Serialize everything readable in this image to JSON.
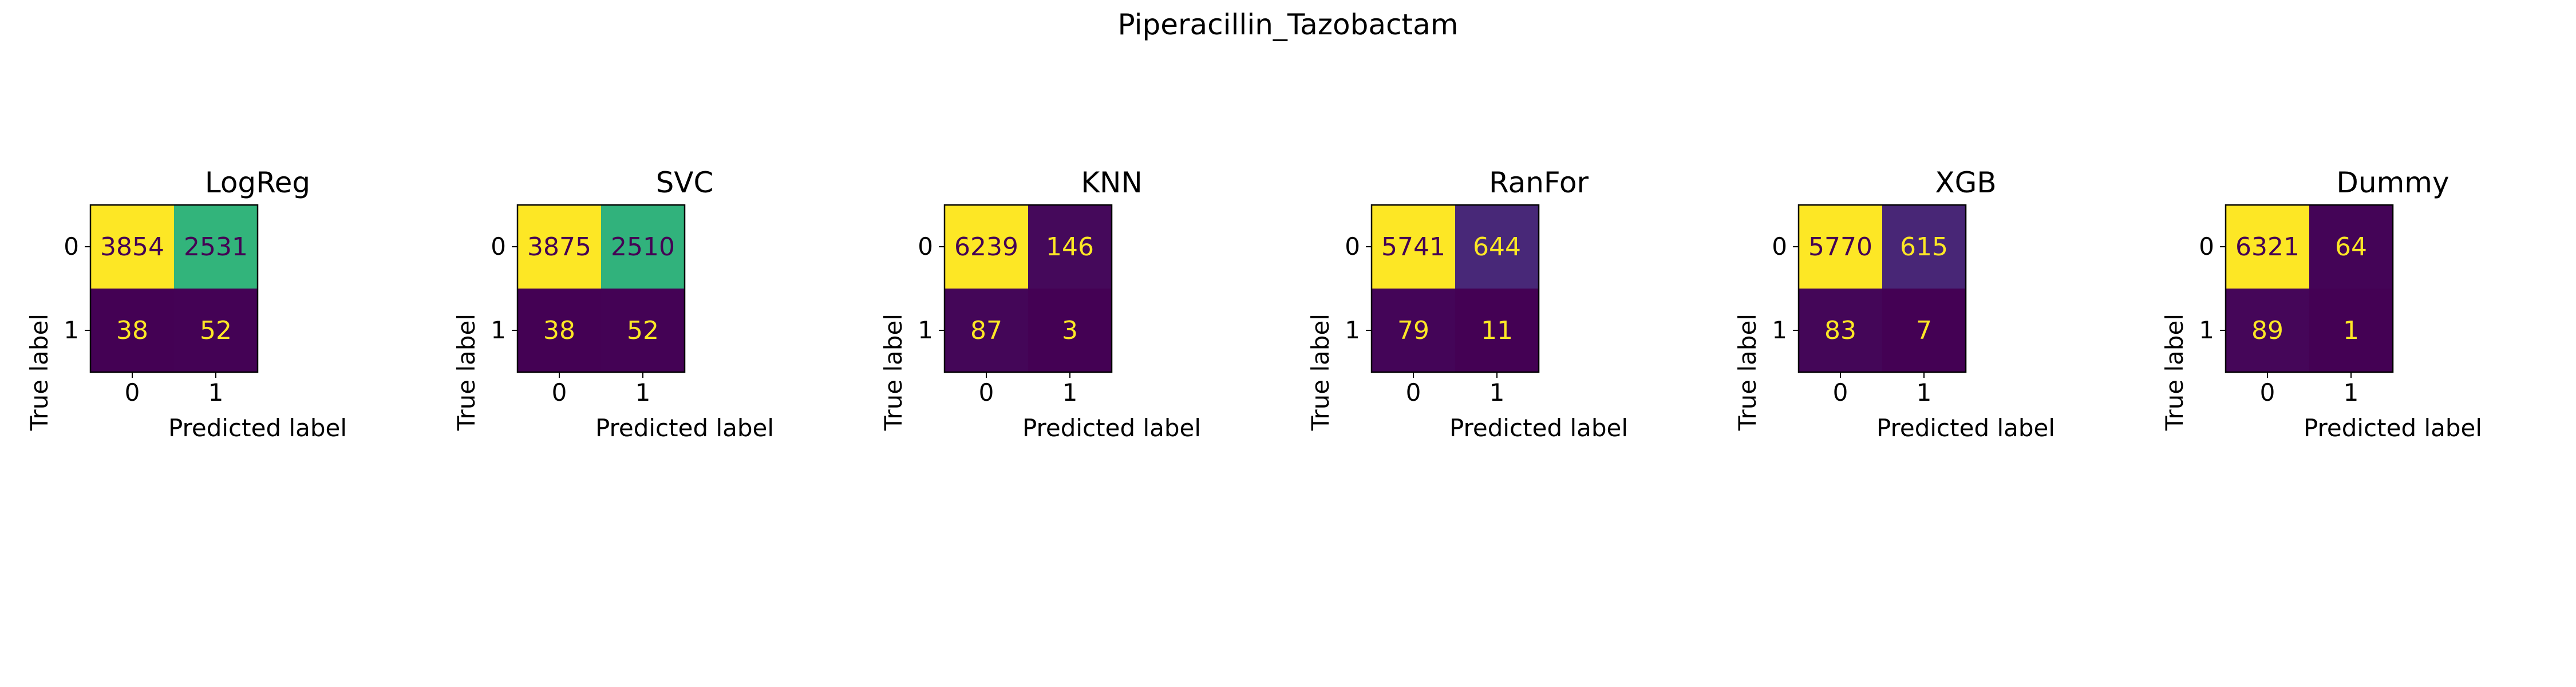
{
  "figure": {
    "title": "Piperacillin_Tazobactam"
  },
  "chart_data": [
    {
      "type": "heatmap",
      "title": "LogReg",
      "xlabel": "Predicted label",
      "ylabel": "True label",
      "x_ticks": [
        "0",
        "1"
      ],
      "y_ticks": [
        "0",
        "1"
      ],
      "matrix": [
        [
          3854,
          2531
        ],
        [
          38,
          52
        ]
      ],
      "colormap": "viridis",
      "grid": false
    },
    {
      "type": "heatmap",
      "title": "SVC",
      "xlabel": "Predicted label",
      "ylabel": "True label",
      "x_ticks": [
        "0",
        "1"
      ],
      "y_ticks": [
        "0",
        "1"
      ],
      "matrix": [
        [
          3875,
          2510
        ],
        [
          38,
          52
        ]
      ],
      "colormap": "viridis",
      "grid": false
    },
    {
      "type": "heatmap",
      "title": "KNN",
      "xlabel": "Predicted label",
      "ylabel": "True label",
      "x_ticks": [
        "0",
        "1"
      ],
      "y_ticks": [
        "0",
        "1"
      ],
      "matrix": [
        [
          6239,
          146
        ],
        [
          87,
          3
        ]
      ],
      "colormap": "viridis",
      "grid": false
    },
    {
      "type": "heatmap",
      "title": "RanFor",
      "xlabel": "Predicted label",
      "ylabel": "True label",
      "x_ticks": [
        "0",
        "1"
      ],
      "y_ticks": [
        "0",
        "1"
      ],
      "matrix": [
        [
          5741,
          644
        ],
        [
          79,
          11
        ]
      ],
      "colormap": "viridis",
      "grid": false
    },
    {
      "type": "heatmap",
      "title": "XGB",
      "xlabel": "Predicted label",
      "ylabel": "True label",
      "x_ticks": [
        "0",
        "1"
      ],
      "y_ticks": [
        "0",
        "1"
      ],
      "matrix": [
        [
          5770,
          615
        ],
        [
          83,
          7
        ]
      ],
      "colormap": "viridis",
      "grid": false
    },
    {
      "type": "heatmap",
      "title": "Dummy",
      "xlabel": "Predicted label",
      "ylabel": "True label",
      "x_ticks": [
        "0",
        "1"
      ],
      "y_ticks": [
        "0",
        "1"
      ],
      "matrix": [
        [
          6321,
          64
        ],
        [
          89,
          1
        ]
      ],
      "colormap": "viridis",
      "grid": false
    }
  ]
}
